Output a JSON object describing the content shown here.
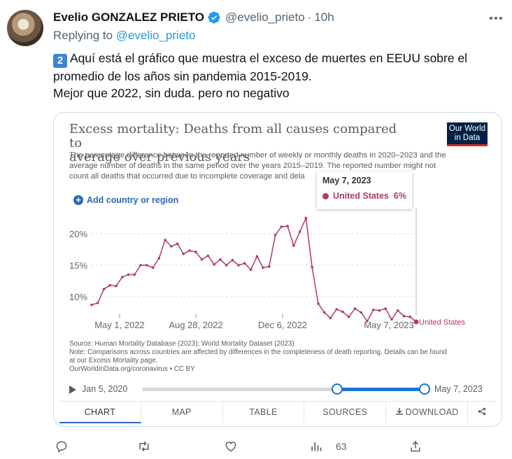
{
  "tweet": {
    "author_name": "Evelio GONZALEZ PRIETO",
    "handle": "@evelio_prieto",
    "separator": "·",
    "time": "10h",
    "replying_to_label": "Replying to",
    "replying_to_handle": "@evelio_prieto",
    "keycap": "2",
    "line1": "Aquí está el gráfico que muestra el exceso de muertes en EEUU sobre el",
    "line2": "promedio de los años sin pandemia 2015-2019.",
    "line3": "Mejor que 2022, sin duda. pero no negativo"
  },
  "card": {
    "title_line1": "Excess mortality: Deaths from all causes compared to",
    "title_line2": "average over previous years",
    "logo_line1": "Our World",
    "logo_line2": "in Data",
    "subtitle_line1": "The percentage difference between the reported number of weekly or monthly deaths in 2020–2023 and the",
    "subtitle_line2": "average number of deaths in the same period over the years 2015–2019. The reported number might not",
    "subtitle_line3": "count all deaths that occurred due to incomplete coverage and dela",
    "add_country_label": "Add country or region",
    "tooltip": {
      "date": "May 7, 2023",
      "series": "United States",
      "value": "6%"
    },
    "source_line1": "Source: Human Mortality Database (2023); World Mortality Dataset (2023)",
    "source_line2": "Note: Comparisons across countries are affected by differences in the completeness of death reporting. Details can be found",
    "source_line3": "at our Excess Mortality page.",
    "source_line4": "OurWorldInData.org/coronavirus • CC BY",
    "timeline": {
      "start": "Jan 5, 2020",
      "end": "May 7, 2023"
    },
    "tabs": [
      "CHART",
      "MAP",
      "TABLE",
      "SOURCES",
      "DOWNLOAD"
    ],
    "download_icon": "download-icon",
    "share_icon": "share-icon"
  },
  "chart_data": {
    "type": "line",
    "title": "Excess mortality: Deaths from all causes compared to average over previous years",
    "ylabel": "",
    "xlabel": "",
    "y_ticks": [
      "10%",
      "15%",
      "20%"
    ],
    "y_tick_values": [
      10,
      15,
      20
    ],
    "x_ticks": [
      "May 1, 2022",
      "Aug 28, 2022",
      "Dec 6, 2022",
      "May 7, 2023"
    ],
    "ylim": [
      7,
      23
    ],
    "grid": "horizontal",
    "series": [
      {
        "name": "United States",
        "color": "#b13d58",
        "values": [
          8.7,
          9.0,
          11.2,
          11.8,
          11.7,
          13.1,
          13.5,
          13.5,
          15.0,
          15.0,
          14.6,
          16.1,
          19.0,
          18.0,
          18.4,
          16.8,
          17.3,
          17.1,
          15.9,
          16.5,
          15.1,
          15.9,
          15.0,
          15.8,
          15.0,
          15.3,
          14.3,
          16.4,
          14.6,
          14.8,
          19.8,
          21.1,
          21.2,
          18.1,
          20.3,
          22.5,
          14.7,
          8.9,
          7.5,
          6.6,
          8.0,
          7.6,
          6.8,
          8.1,
          7.5,
          6.1,
          7.9,
          7.8,
          8.1,
          6.4,
          7.8,
          6.9,
          6.8,
          6.0
        ]
      }
    ]
  },
  "actions": {
    "reply_icon": "reply-icon",
    "retweet_icon": "retweet-icon",
    "like_icon": "like-icon",
    "views_icon": "views-icon",
    "views_count": "63",
    "share_icon": "share-upload-icon"
  }
}
